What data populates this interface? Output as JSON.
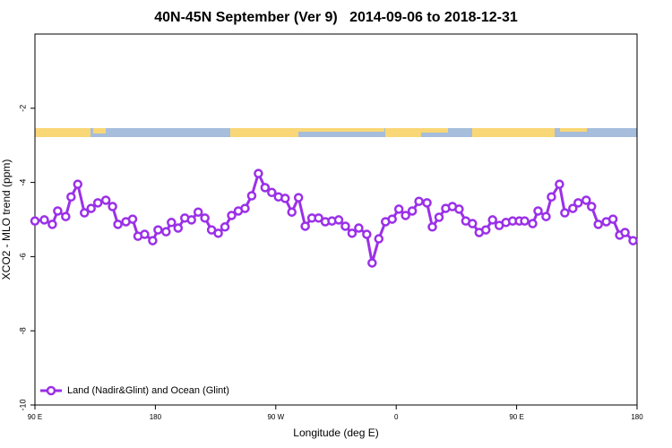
{
  "chart_data": {
    "type": "line",
    "title": "40N-45N September (Ver 9)   2014-09-06 to 2018-12-31",
    "x_label": "Longitude (deg E)",
    "y_label": "XCO2 - MLO trend (ppm)",
    "xlim": [
      90,
      540
    ],
    "xticks": [
      {
        "value": 90,
        "label": "90 E"
      },
      180,
      {
        "value": 270,
        "label": "90 W"
      },
      {
        "value": 360,
        "label": "0"
      },
      {
        "value": 450,
        "label": "90 E"
      },
      {
        "value": 540,
        "label": "180"
      }
    ],
    "ylim": [
      -10,
      0
    ],
    "yticks": [
      -10,
      -8,
      -6,
      -4,
      -2
    ],
    "legend": "bottom-left",
    "series": [
      {
        "name": "Land (Nadir&Glint) and Ocean (Glint)",
        "color": "#9b30e8",
        "x": [
          90,
          97,
          103,
          107,
          113,
          117,
          122,
          127,
          132,
          137,
          143,
          148,
          152,
          158,
          163,
          167,
          172,
          178,
          182,
          188,
          192,
          197,
          202,
          207,
          212,
          217,
          222,
          227,
          232,
          237,
          242,
          247,
          252,
          257,
          262,
          267,
          272,
          277,
          282,
          287,
          292,
          297,
          302,
          307,
          312,
          317,
          322,
          327,
          332,
          338,
          342,
          347,
          352,
          357,
          362,
          367,
          372,
          377,
          383,
          387,
          392,
          397,
          402,
          407,
          412,
          417,
          422,
          427,
          432,
          437,
          442,
          447,
          452,
          456,
          462,
          466,
          472,
          476,
          482,
          486,
          492,
          496,
          502,
          506,
          511,
          517,
          522,
          527,
          531,
          537
        ],
        "values": [
          -5.04,
          -5.01,
          -5.13,
          -4.77,
          -4.92,
          -4.39,
          -4.05,
          -4.82,
          -4.7,
          -4.55,
          -4.48,
          -4.65,
          -5.13,
          -5.06,
          -4.99,
          -5.45,
          -5.4,
          -5.57,
          -5.28,
          -5.33,
          -5.08,
          -5.23,
          -4.96,
          -5.01,
          -4.8,
          -4.96,
          -5.28,
          -5.37,
          -5.2,
          -4.89,
          -4.77,
          -4.7,
          -4.36,
          -3.76,
          -4.14,
          -4.27,
          -4.39,
          -4.43,
          -4.8,
          -4.41,
          -5.18,
          -4.96,
          -4.96,
          -5.06,
          -5.04,
          -5.01,
          -5.18,
          -5.37,
          -5.23,
          -5.4,
          -6.17,
          -5.52,
          -5.06,
          -4.99,
          -4.72,
          -4.89,
          -4.77,
          -4.51,
          -4.55,
          -5.2,
          -4.94,
          -4.7,
          -4.65,
          -4.72,
          -5.04,
          -5.11,
          -5.35,
          -5.28,
          -5.01,
          -5.16,
          -5.08,
          -5.04,
          -5.04,
          -5.04,
          -5.11,
          -4.77,
          -4.92,
          -4.39,
          -4.05,
          -4.82,
          -4.7,
          -4.55,
          -4.48,
          -4.65,
          -5.13,
          -5.06,
          -4.99,
          -5.42,
          -5.35,
          -5.57
        ]
      }
    ]
  }
}
